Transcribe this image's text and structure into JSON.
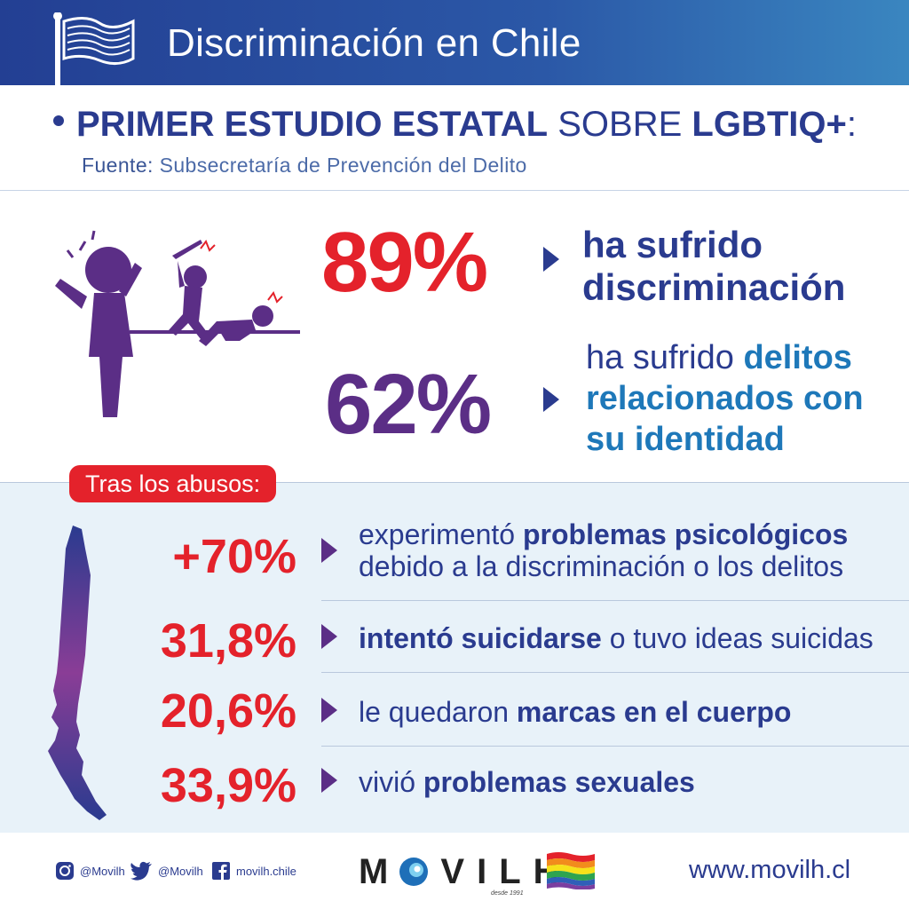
{
  "header": {
    "title": "Discriminación en Chile",
    "flag_icon": "flag-icon"
  },
  "study": {
    "part1": "PRIMER ESTUDIO ESTATAL",
    "part2": " SOBRE ",
    "part3": "LGBTIQ+",
    "part4": ":",
    "source_label": "Fuente:",
    "source_value": " Subsecretaría de Prevención del Delito"
  },
  "stats_top": [
    {
      "value": "89%",
      "line1": "ha sufrido",
      "line2": "discriminación"
    },
    {
      "value": "62%",
      "line1_plain": "ha sufrido ",
      "line1_bold": "delitos",
      "line2": "relacionados con",
      "line3": "su identidad"
    }
  ],
  "abuses": {
    "label": "Tras los abusos:",
    "items": [
      {
        "value": "+70%",
        "plain1": "experimentó ",
        "bold": "problemas psicológicos",
        "line2": "debido a la discriminación o los delitos"
      },
      {
        "value": "31,8%",
        "bold": "intentó suicidarse",
        "plain": " o tuvo ideas suicidas"
      },
      {
        "value": "20,6%",
        "plain": "le quedaron ",
        "bold": "marcas en el cuerpo"
      },
      {
        "value": "33,9%",
        "plain": "vivió ",
        "bold": "problemas sexuales"
      }
    ]
  },
  "footer": {
    "instagram": "@Movilh",
    "twitter": "@Movilh",
    "facebook": "movilh.chile",
    "logo": "MOVILH",
    "logo_sub": "desde 1991",
    "url": "www.movilh.cl"
  },
  "colors": {
    "red": "#e4222b",
    "navy": "#2a3b8f",
    "purple": "#5b2e86",
    "blue": "#1e78b9"
  }
}
